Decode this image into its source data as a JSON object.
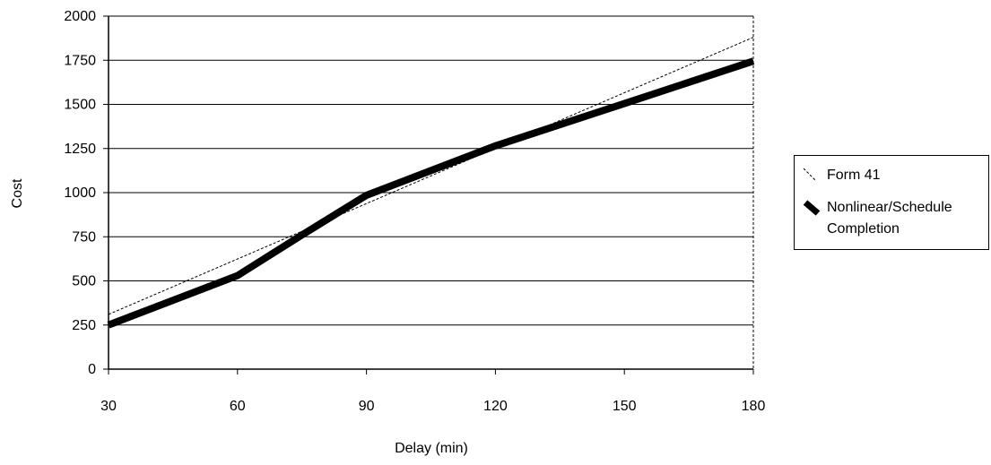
{
  "chart_data": {
    "type": "line",
    "xlabel": "Delay (min)",
    "ylabel": "Cost",
    "x_ticks": [
      "30",
      "60",
      "90",
      "120",
      "150",
      "180"
    ],
    "y_ticks": [
      "0",
      "250",
      "500",
      "750",
      "1000",
      "1250",
      "1500",
      "1750",
      "2000"
    ],
    "xlim": [
      30,
      180
    ],
    "ylim": [
      0,
      2000
    ],
    "grid": "horizontal",
    "legend_position": "right",
    "series": [
      {
        "name": "Form 41",
        "style": "dashed-thin",
        "color": "#000000",
        "x": [
          30,
          180
        ],
        "y": [
          310,
          1880
        ]
      },
      {
        "name": "Nonlinear/Schedule Completion",
        "style": "solid-thick",
        "color": "#000000",
        "x": [
          30,
          60,
          75,
          90,
          120,
          150,
          180
        ],
        "y": [
          250,
          530,
          760,
          985,
          1265,
          1505,
          1745
        ]
      }
    ]
  },
  "legend": {
    "item1": "Form 41",
    "item2_line1": "Nonlinear/Schedule",
    "item2_line2": "Completion"
  }
}
